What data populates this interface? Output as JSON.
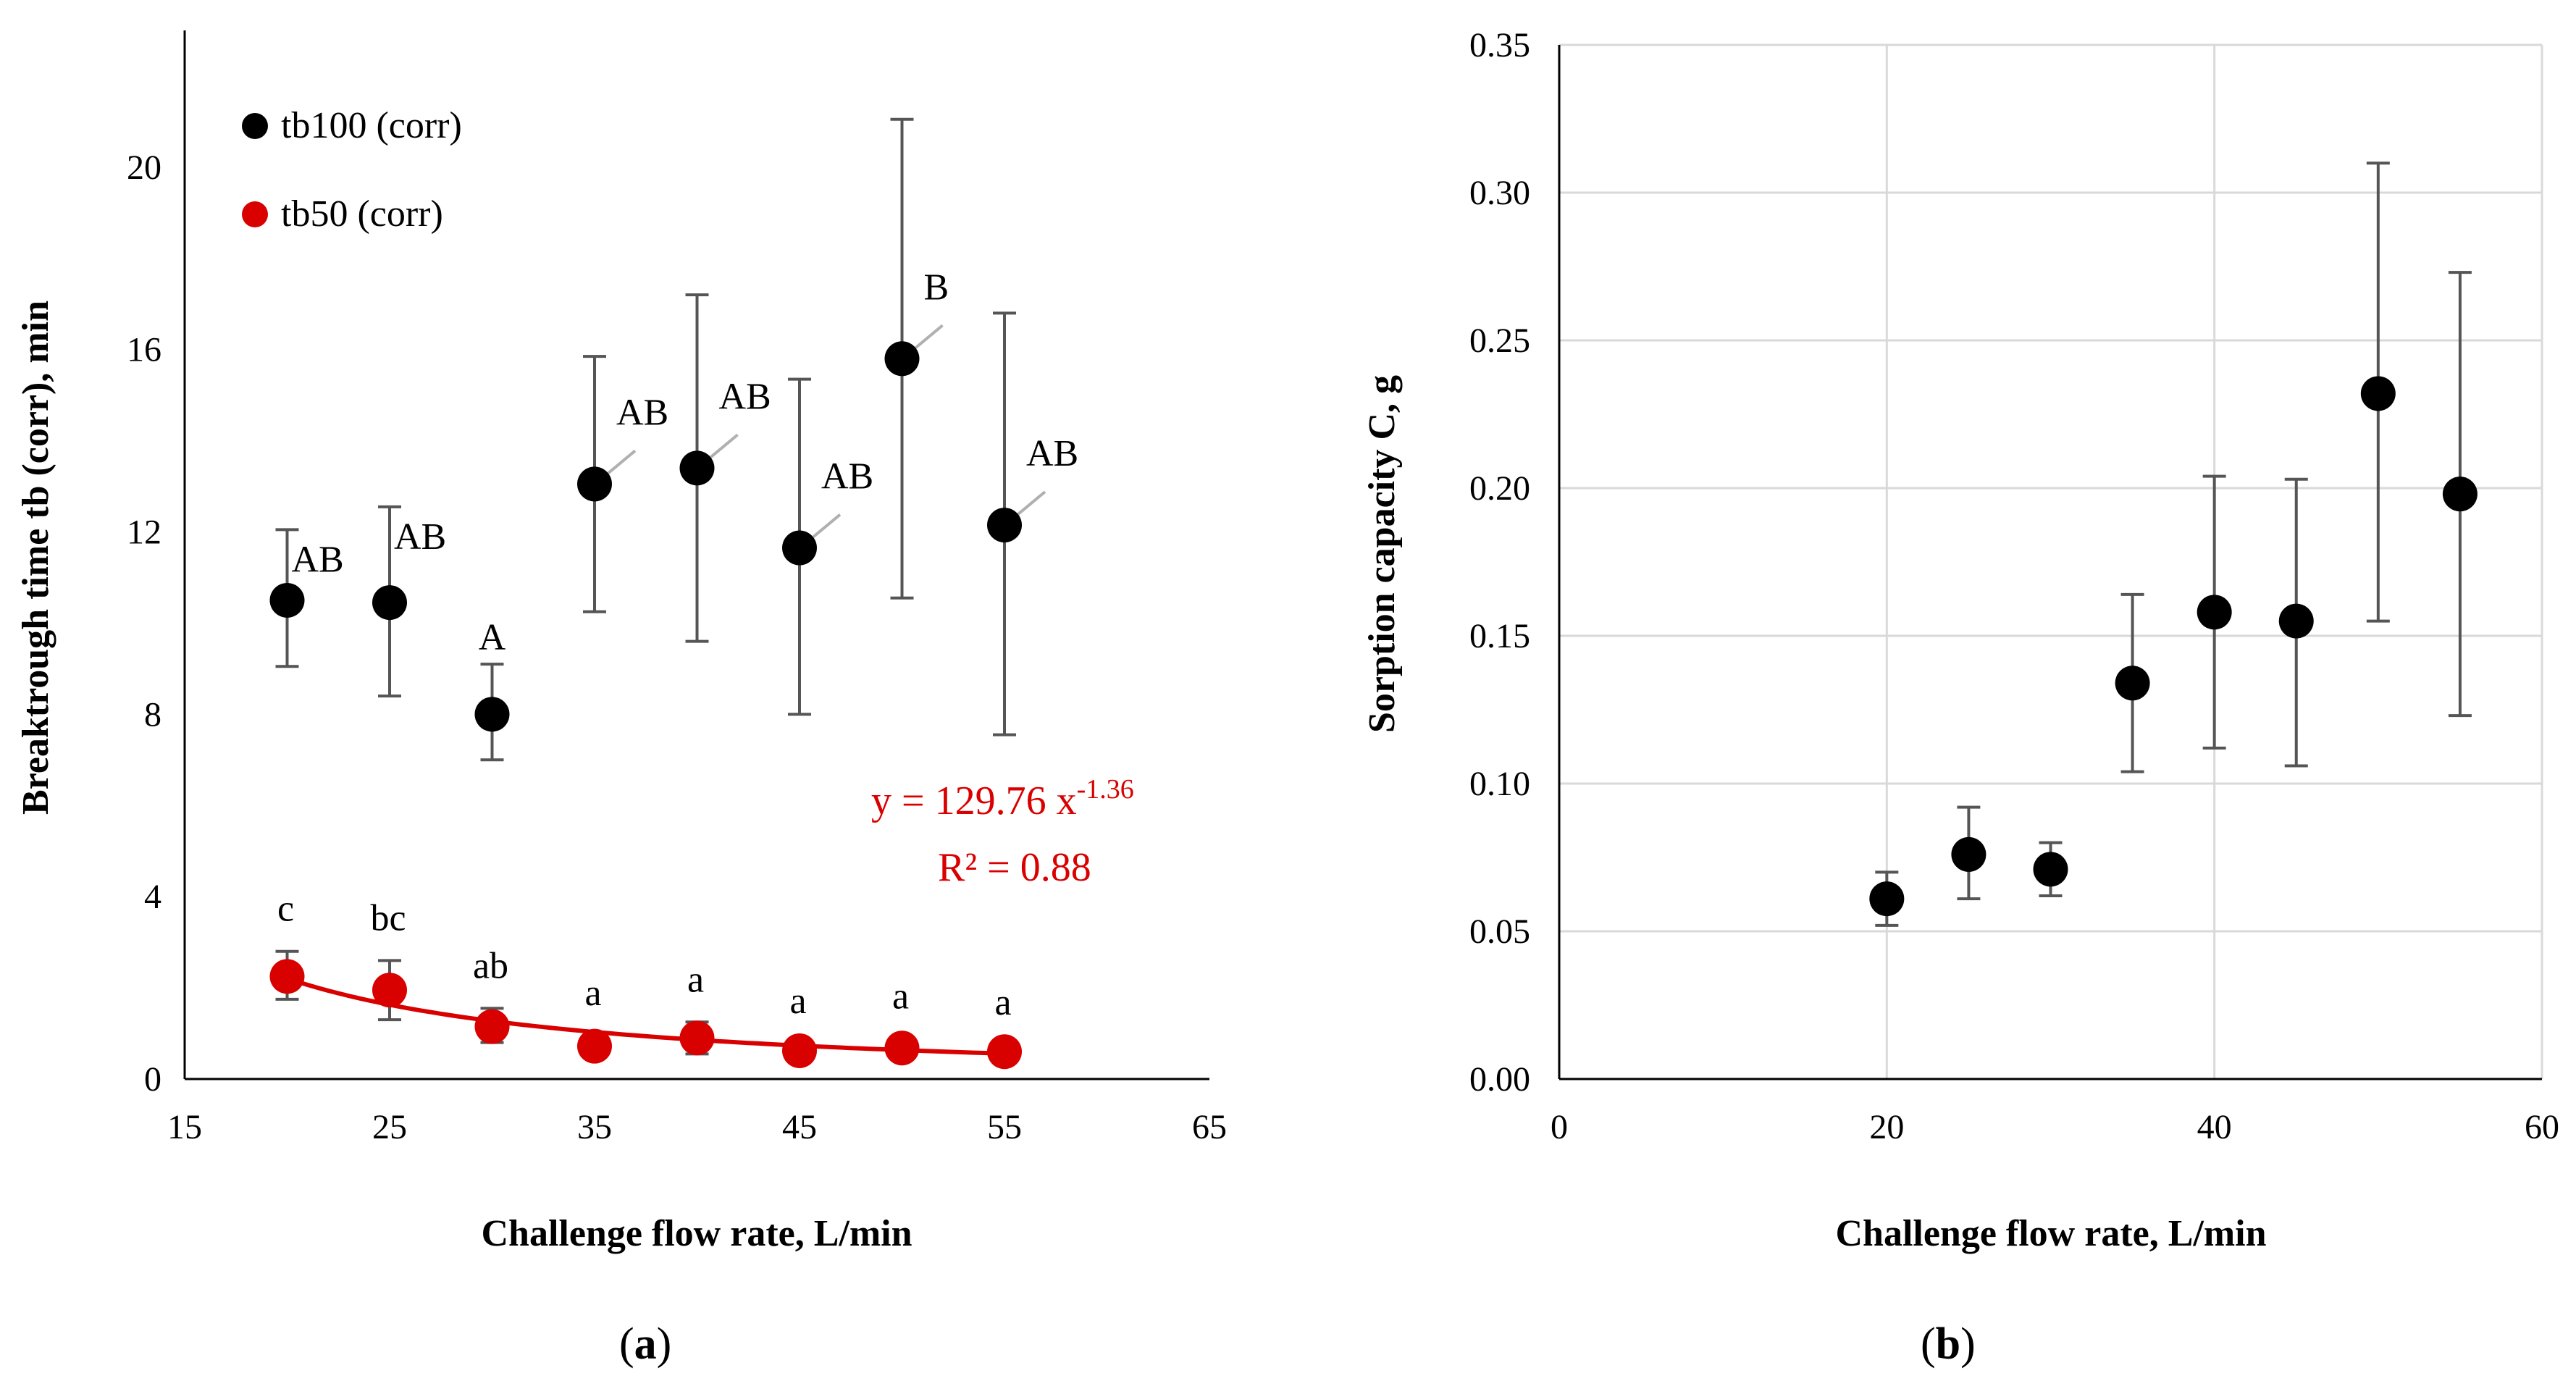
{
  "chart_data": [
    {
      "type": "scatter",
      "panel": "a",
      "xlabel": "Challenge flow rate, L/min",
      "ylabel": "Breaktrough time tb (corr), min",
      "xlim": [
        15,
        65
      ],
      "ylim": [
        0,
        23
      ],
      "xticks": [
        15,
        25,
        35,
        45,
        55,
        65
      ],
      "yticks": [
        0,
        4,
        8,
        12,
        16,
        20
      ],
      "legend_position": "top-left",
      "series": [
        {
          "name": "tb100 (corr)",
          "color": "#000000",
          "x": [
            20,
            25,
            30,
            35,
            40,
            45,
            50,
            55
          ],
          "y": [
            10.5,
            10.45,
            8.0,
            13.05,
            13.4,
            11.65,
            15.8,
            12.15
          ],
          "err_low": [
            9.05,
            8.4,
            7.0,
            10.25,
            9.6,
            8.0,
            10.55,
            7.55
          ],
          "err_high": [
            12.05,
            12.55,
            9.1,
            15.85,
            17.2,
            15.35,
            21.05,
            16.8
          ],
          "labels": [
            "AB",
            "AB",
            "A",
            "AB",
            "AB",
            "AB",
            "B",
            "AB"
          ]
        },
        {
          "name": "tb50 (corr)",
          "color": "#d90000",
          "x": [
            20,
            25,
            30,
            35,
            40,
            45,
            50,
            55
          ],
          "y": [
            2.25,
            1.95,
            1.15,
            0.72,
            0.9,
            0.62,
            0.68,
            0.6
          ],
          "err_low": [
            1.75,
            1.3,
            0.8,
            0.55,
            0.55,
            0.5,
            0.5,
            0.45
          ],
          "err_high": [
            2.8,
            2.6,
            1.55,
            0.95,
            1.25,
            0.78,
            0.88,
            0.75
          ],
          "labels": [
            "c",
            "bc",
            "ab",
            "a",
            "a",
            "a",
            "a",
            "a"
          ]
        }
      ],
      "trendline": {
        "series": "tb50 (corr)",
        "coef": 129.76,
        "exp": -1.36,
        "equation_prefix": "y = 129.76 x",
        "equation_exponent": "-1.36",
        "r2": "R² = 0.88"
      }
    },
    {
      "type": "scatter",
      "panel": "b",
      "xlabel": "Challenge flow rate, L/min",
      "ylabel": "Sorption capacity C, g",
      "xlim": [
        0,
        60
      ],
      "ylim": [
        0,
        0.35
      ],
      "xticks": [
        0,
        20,
        40,
        60
      ],
      "yticks": [
        "0.00",
        "0.05",
        "0.10",
        "0.15",
        "0.20",
        "0.25",
        "0.30",
        "0.35"
      ],
      "grid": true,
      "series": [
        {
          "name": "C",
          "color": "#000000",
          "x": [
            20,
            25,
            30,
            35,
            40,
            45,
            50,
            55
          ],
          "y": [
            0.061,
            0.076,
            0.071,
            0.134,
            0.158,
            0.155,
            0.232,
            0.198
          ],
          "err_low": [
            0.052,
            0.061,
            0.062,
            0.104,
            0.112,
            0.106,
            0.155,
            0.123
          ],
          "err_high": [
            0.07,
            0.092,
            0.08,
            0.164,
            0.204,
            0.203,
            0.31,
            0.273
          ]
        }
      ]
    }
  ],
  "captions": {
    "a": {
      "open": "(",
      "letter": "a",
      "close": ")"
    },
    "b": {
      "open": "(",
      "letter": "b",
      "close": ")"
    }
  }
}
